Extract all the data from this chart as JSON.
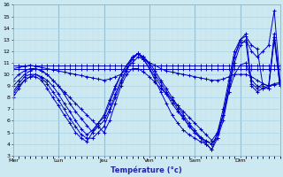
{
  "xlabel": "Température (°c)",
  "bg_color": "#cce8f0",
  "line_color": "#0000cc",
  "grid_major_color": "#aad4e8",
  "grid_minor_color": "#cce0ec",
  "ylim": [
    3,
    16
  ],
  "yticks": [
    3,
    4,
    5,
    6,
    7,
    8,
    9,
    10,
    11,
    12,
    13,
    14,
    15,
    16
  ],
  "x_day_labels": [
    "Mer",
    "Lun",
    "Jeu",
    "Ven",
    "Sam",
    "Dim"
  ],
  "x_day_positions": [
    0,
    8,
    16,
    24,
    32,
    40
  ],
  "x_day_line_positions": [
    8,
    16,
    24,
    32,
    40
  ],
  "total_points": 48,
  "series": [
    [
      10.5,
      10.5,
      10.5,
      10.5,
      10.5,
      10.5,
      10.5,
      10.5,
      10.5,
      10.5,
      10.5,
      10.5,
      10.5,
      10.5,
      10.5,
      10.5,
      10.5,
      10.5,
      10.5,
      10.5,
      10.5,
      10.5,
      10.5,
      10.5,
      10.5,
      10.5,
      10.5,
      10.5,
      10.5,
      10.5,
      10.5,
      10.5,
      10.5,
      10.5,
      10.5,
      10.5,
      10.5,
      10.5,
      10.5,
      10.5,
      10.5,
      10.5,
      10.5,
      10.5,
      10.5,
      10.5,
      10.5,
      10.5
    ],
    [
      10.8,
      10.8,
      10.8,
      10.8,
      10.8,
      10.8,
      10.8,
      10.8,
      10.8,
      10.8,
      10.8,
      10.8,
      10.8,
      10.8,
      10.8,
      10.8,
      10.8,
      10.8,
      10.8,
      10.8,
      10.8,
      10.8,
      10.8,
      10.8,
      10.8,
      10.8,
      10.8,
      10.8,
      10.8,
      10.8,
      10.8,
      10.8,
      10.8,
      10.8,
      10.8,
      10.8,
      10.8,
      10.8,
      10.8,
      10.8,
      10.8,
      10.8,
      10.8,
      10.8,
      10.8,
      10.8,
      10.8,
      10.8
    ],
    [
      10.5,
      10.6,
      10.7,
      10.8,
      10.7,
      10.6,
      10.5,
      10.4,
      10.3,
      10.2,
      10.1,
      10.0,
      9.9,
      9.8,
      9.7,
      9.6,
      9.5,
      9.6,
      9.8,
      10.0,
      10.5,
      11.0,
      11.5,
      11.3,
      11.0,
      10.8,
      10.5,
      10.3,
      10.2,
      10.1,
      10.0,
      9.9,
      9.8,
      9.7,
      9.6,
      9.5,
      9.5,
      9.6,
      9.8,
      10.0,
      10.0,
      10.0,
      9.8,
      9.5,
      9.2,
      9.0,
      9.1,
      9.2
    ],
    [
      9.5,
      10.0,
      10.3,
      10.5,
      10.5,
      10.3,
      10.0,
      9.5,
      9.0,
      8.5,
      8.0,
      7.5,
      7.0,
      6.5,
      6.0,
      5.5,
      5.0,
      6.0,
      7.5,
      9.0,
      10.0,
      10.5,
      10.5,
      10.2,
      9.8,
      9.3,
      8.8,
      8.3,
      7.8,
      7.3,
      6.8,
      6.3,
      5.8,
      5.3,
      4.8,
      4.3,
      5.0,
      6.5,
      8.5,
      10.0,
      10.8,
      11.0,
      9.5,
      9.0,
      8.8,
      9.0,
      9.2,
      9.3
    ],
    [
      9.0,
      9.5,
      10.0,
      10.3,
      10.5,
      10.3,
      10.0,
      9.5,
      9.0,
      8.3,
      7.5,
      6.8,
      6.2,
      5.6,
      5.0,
      5.5,
      6.0,
      7.0,
      8.3,
      9.5,
      10.5,
      11.5,
      11.8,
      11.3,
      10.5,
      9.8,
      9.0,
      8.3,
      7.5,
      6.8,
      6.2,
      5.6,
      5.0,
      4.5,
      4.0,
      3.5,
      4.5,
      6.0,
      8.5,
      11.0,
      12.5,
      13.0,
      12.0,
      11.5,
      12.0,
      12.5,
      15.5,
      9.5
    ],
    [
      8.5,
      9.2,
      9.8,
      10.0,
      10.0,
      9.7,
      9.2,
      8.5,
      7.8,
      7.0,
      6.2,
      5.5,
      4.8,
      4.5,
      4.5,
      5.0,
      5.5,
      6.8,
      8.0,
      9.3,
      10.3,
      11.3,
      11.8,
      11.5,
      11.0,
      10.3,
      9.5,
      8.8,
      8.0,
      7.3,
      6.5,
      5.8,
      5.2,
      4.6,
      4.2,
      4.0,
      4.8,
      6.5,
      9.0,
      11.5,
      13.0,
      13.5,
      9.2,
      8.8,
      9.2,
      9.0,
      13.2,
      9.0
    ],
    [
      8.0,
      8.8,
      9.5,
      9.8,
      9.8,
      9.5,
      8.8,
      8.0,
      7.3,
      6.5,
      5.8,
      5.0,
      4.5,
      4.2,
      5.0,
      5.8,
      6.5,
      7.8,
      9.0,
      10.0,
      10.8,
      11.5,
      11.8,
      11.3,
      10.5,
      9.5,
      8.5,
      7.5,
      6.5,
      5.8,
      5.2,
      4.8,
      4.5,
      4.2,
      4.0,
      3.5,
      5.0,
      7.0,
      9.5,
      12.0,
      13.0,
      13.3,
      12.5,
      12.2,
      9.0,
      8.8,
      13.5,
      9.2
    ],
    [
      8.3,
      9.0,
      9.5,
      9.8,
      10.0,
      9.8,
      9.5,
      9.0,
      8.3,
      7.5,
      6.8,
      6.0,
      5.3,
      4.8,
      5.2,
      5.8,
      6.3,
      7.5,
      8.8,
      10.0,
      10.8,
      11.3,
      11.8,
      11.5,
      10.8,
      10.0,
      9.3,
      8.5,
      7.8,
      7.0,
      6.3,
      5.5,
      5.0,
      4.5,
      4.3,
      4.0,
      4.5,
      6.5,
      9.0,
      11.5,
      12.8,
      12.8,
      9.0,
      8.5,
      8.8,
      8.8,
      13.0,
      9.0
    ]
  ]
}
